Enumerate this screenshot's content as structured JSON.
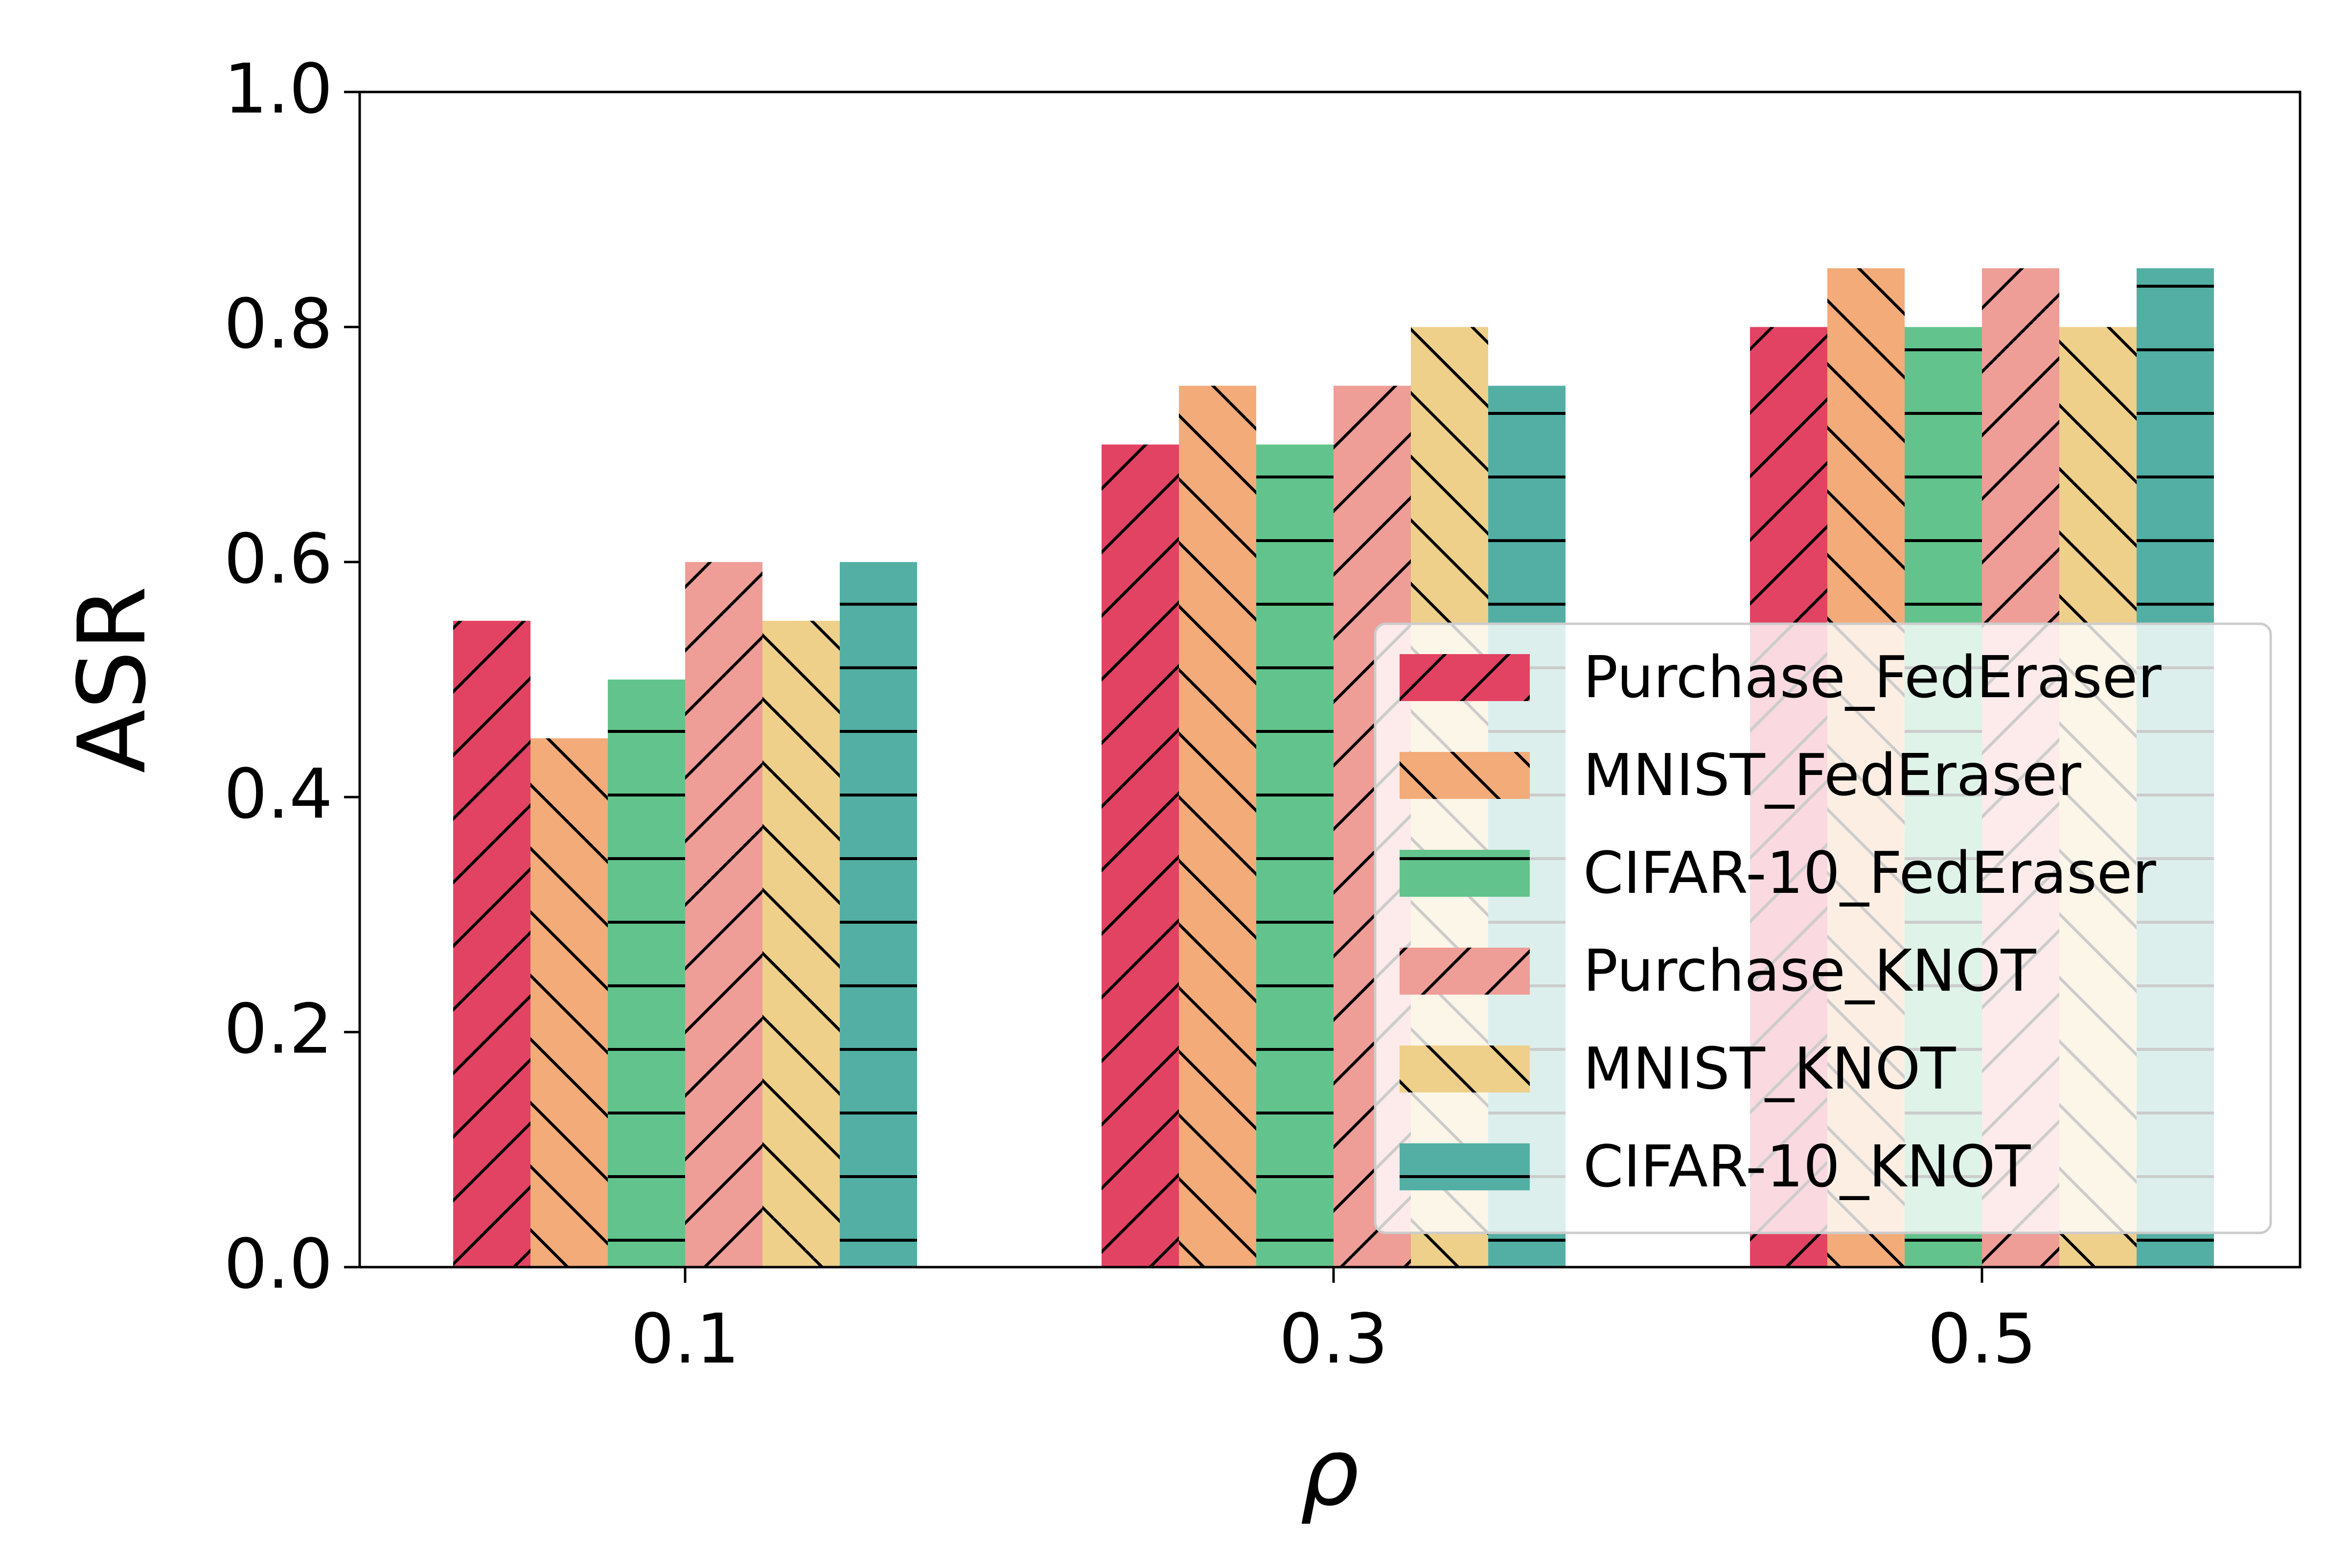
{
  "chart_data": {
    "type": "bar",
    "title": "",
    "xlabel": "ρ",
    "ylabel": "ASR",
    "categories": [
      "0.1",
      "0.3",
      "0.5"
    ],
    "ylim": [
      0.0,
      1.0
    ],
    "yticks": [
      "0.0",
      "0.2",
      "0.4",
      "0.6",
      "0.8",
      "1.0"
    ],
    "yticks_values": [
      0.0,
      0.2,
      0.4,
      0.6,
      0.8,
      1.0
    ],
    "grid": false,
    "legend_position": "lower-right",
    "series": [
      {
        "name": "Purchase_FedEraser",
        "values": [
          0.55,
          0.7,
          0.8
        ],
        "color": "#e34363",
        "hatch": "slash"
      },
      {
        "name": "MNIST_FedEraser",
        "values": [
          0.45,
          0.75,
          0.85
        ],
        "color": "#f3ab79",
        "hatch": "backslash"
      },
      {
        "name": "CIFAR-10_FedEraser",
        "values": [
          0.5,
          0.7,
          0.8
        ],
        "color": "#62c48c",
        "hatch": "horizontal"
      },
      {
        "name": "Purchase_KNOT",
        "values": [
          0.6,
          0.75,
          0.85
        ],
        "color": "#ee9d97",
        "hatch": "slash"
      },
      {
        "name": "MNIST_KNOT",
        "values": [
          0.55,
          0.8,
          0.8
        ],
        "color": "#eed08b",
        "hatch": "backslash"
      },
      {
        "name": "CIFAR-10_KNOT",
        "values": [
          0.6,
          0.75,
          0.85
        ],
        "color": "#53afa4",
        "hatch": "horizontal"
      }
    ]
  }
}
